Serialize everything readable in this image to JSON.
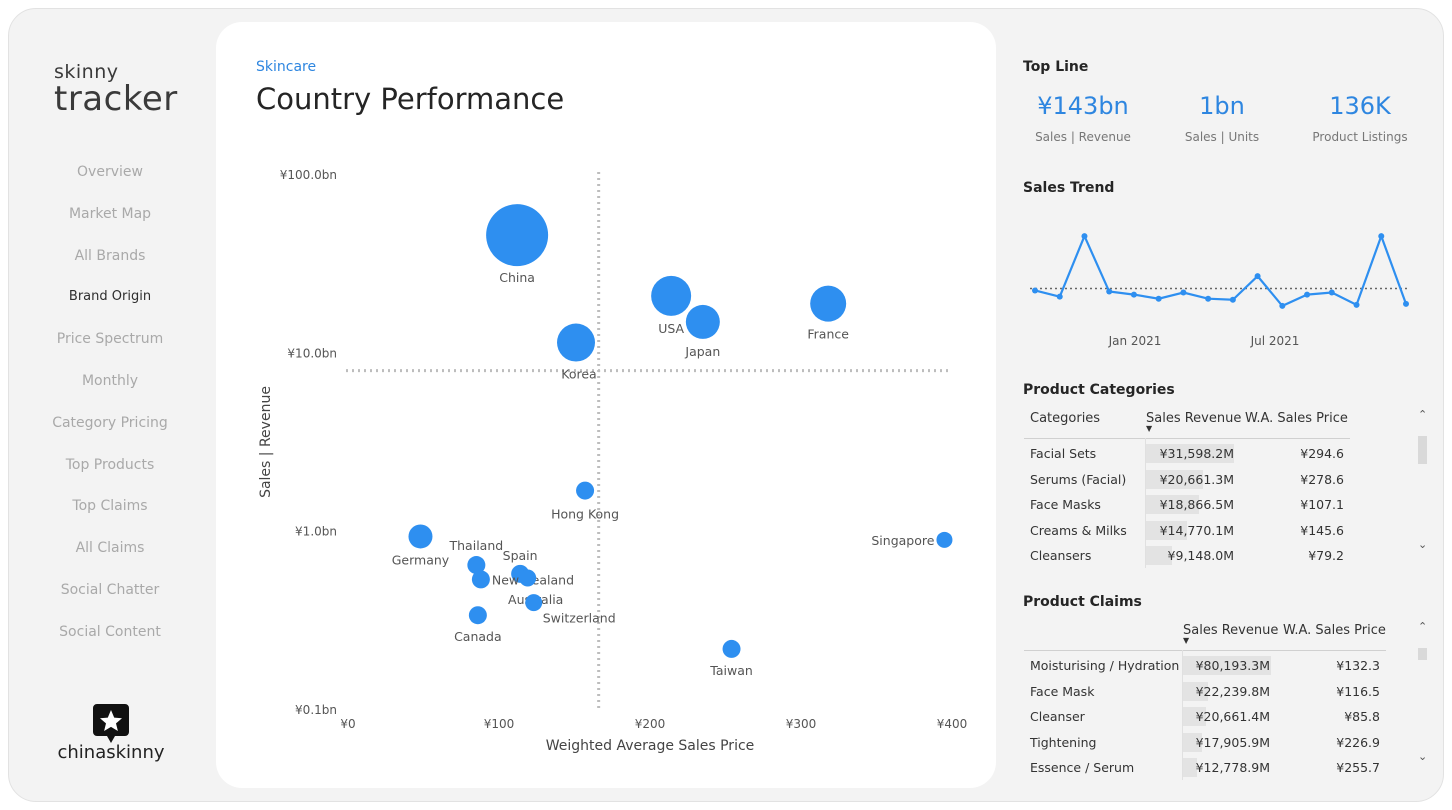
{
  "logo": {
    "line1": "skinny",
    "line2": "tracker"
  },
  "nav": [
    {
      "label": "Overview",
      "active": false
    },
    {
      "label": "Market Map",
      "active": false
    },
    {
      "label": "All Brands",
      "active": false
    },
    {
      "label": "Brand Origin",
      "active": true
    },
    {
      "label": "Price Spectrum",
      "active": false
    },
    {
      "label": "Monthly",
      "active": false
    },
    {
      "label": "Category Pricing",
      "active": false
    },
    {
      "label": "Top Products",
      "active": false
    },
    {
      "label": "Top Claims",
      "active": false
    },
    {
      "label": "All Claims",
      "active": false
    },
    {
      "label": "Social Chatter",
      "active": false
    },
    {
      "label": "Social Content",
      "active": false
    }
  ],
  "brand": {
    "name": "chinaskinny"
  },
  "main": {
    "eyebrow": "Skincare",
    "title": "Country Performance"
  },
  "chart_data": {
    "type": "scatter",
    "xlabel": "Weighted Average Sales Price",
    "ylabel": "Sales | Revenue",
    "x_ticks": [
      "¥0",
      "¥100",
      "¥200",
      "¥300",
      "¥400"
    ],
    "y_ticks": [
      "¥100.0bn",
      "¥10.0bn",
      "¥1.0bn",
      "¥0.1bn"
    ],
    "xlim": [
      0,
      400
    ],
    "ylim_bn": [
      0.1,
      100
    ],
    "y_scale": "log",
    "reference_lines": {
      "x": 166,
      "y": 8.0
    },
    "points": [
      {
        "label": "China",
        "x": 112,
        "y": 46,
        "size": 31
      },
      {
        "label": "USA",
        "x": 214,
        "y": 21,
        "size": 20
      },
      {
        "label": "Japan",
        "x": 235,
        "y": 15,
        "size": 17
      },
      {
        "label": "France",
        "x": 318,
        "y": 19,
        "size": 18
      },
      {
        "label": "Korea",
        "x": 151,
        "y": 11.5,
        "size": 19
      },
      {
        "label": "Hong Kong",
        "x": 157,
        "y": 1.7,
        "size": 9
      },
      {
        "label": "Germany",
        "x": 48,
        "y": 0.94,
        "size": 12
      },
      {
        "label": "Thailand",
        "x": 85,
        "y": 0.65,
        "size": 9
      },
      {
        "label": "Spain",
        "x": 114,
        "y": 0.58,
        "size": 9
      },
      {
        "label": "New Zealand",
        "x": 88,
        "y": 0.54,
        "size": 9
      },
      {
        "label": "Australia",
        "x": 119,
        "y": 0.55,
        "size": 8.5
      },
      {
        "label": "Switzerland",
        "x": 123,
        "y": 0.4,
        "size": 8.5
      },
      {
        "label": "Canada",
        "x": 86,
        "y": 0.34,
        "size": 9
      },
      {
        "label": "Taiwan",
        "x": 254,
        "y": 0.22,
        "size": 9
      },
      {
        "label": "Singapore",
        "x": 395,
        "y": 0.9,
        "size": 8
      }
    ],
    "color": "#2e8ff0",
    "grid": false
  },
  "topline": {
    "title": "Top Line",
    "kpis": [
      {
        "value": "¥143bn",
        "label": "Sales | Revenue"
      },
      {
        "value": "1bn",
        "label": "Sales | Units"
      },
      {
        "value": "136K",
        "label": "Product Listings"
      }
    ]
  },
  "trend": {
    "title": "Sales Trend",
    "x_labels": [
      "Jan 2021",
      "Jul 2021"
    ],
    "values": [
      4.9,
      4.3,
      10.2,
      4.8,
      4.5,
      4.1,
      4.7,
      4.1,
      4.0,
      6.3,
      3.4,
      4.5,
      4.7,
      3.5,
      10.2,
      3.6
    ],
    "average": 5.1,
    "color": "#2e8ff0"
  },
  "categories": {
    "title": "Product Categories",
    "headers": [
      "Categories",
      "Sales Revenue",
      "W.A. Sales Price"
    ],
    "rows": [
      {
        "name": "Facial Sets",
        "revenue": "¥31,598.2M",
        "price": "¥294.6",
        "share": 1.0
      },
      {
        "name": "Serums (Facial)",
        "revenue": "¥20,661.3M",
        "price": "¥278.6",
        "share": 0.65
      },
      {
        "name": "Face Masks",
        "revenue": "¥18,866.5M",
        "price": "¥107.1",
        "share": 0.6
      },
      {
        "name": "Creams & Milks",
        "revenue": "¥14,770.1M",
        "price": "¥145.6",
        "share": 0.47
      },
      {
        "name": "Cleansers",
        "revenue": "¥9,148.0M",
        "price": "¥79.2",
        "share": 0.29
      }
    ]
  },
  "claims": {
    "title": "Product Claims",
    "headers": [
      "Sales Revenue",
      "W.A. Sales Price"
    ],
    "rows": [
      {
        "name": "Moisturising / Hydration",
        "revenue": "¥80,193.3M",
        "price": "¥132.3",
        "share": 1.0
      },
      {
        "name": "Face Mask",
        "revenue": "¥22,239.8M",
        "price": "¥116.5",
        "share": 0.28
      },
      {
        "name": "Cleanser",
        "revenue": "¥20,661.4M",
        "price": "¥85.8",
        "share": 0.26
      },
      {
        "name": "Tightening",
        "revenue": "¥17,905.9M",
        "price": "¥226.9",
        "share": 0.22
      },
      {
        "name": "Essence / Serum",
        "revenue": "¥12,778.9M",
        "price": "¥255.7",
        "share": 0.16
      }
    ]
  }
}
